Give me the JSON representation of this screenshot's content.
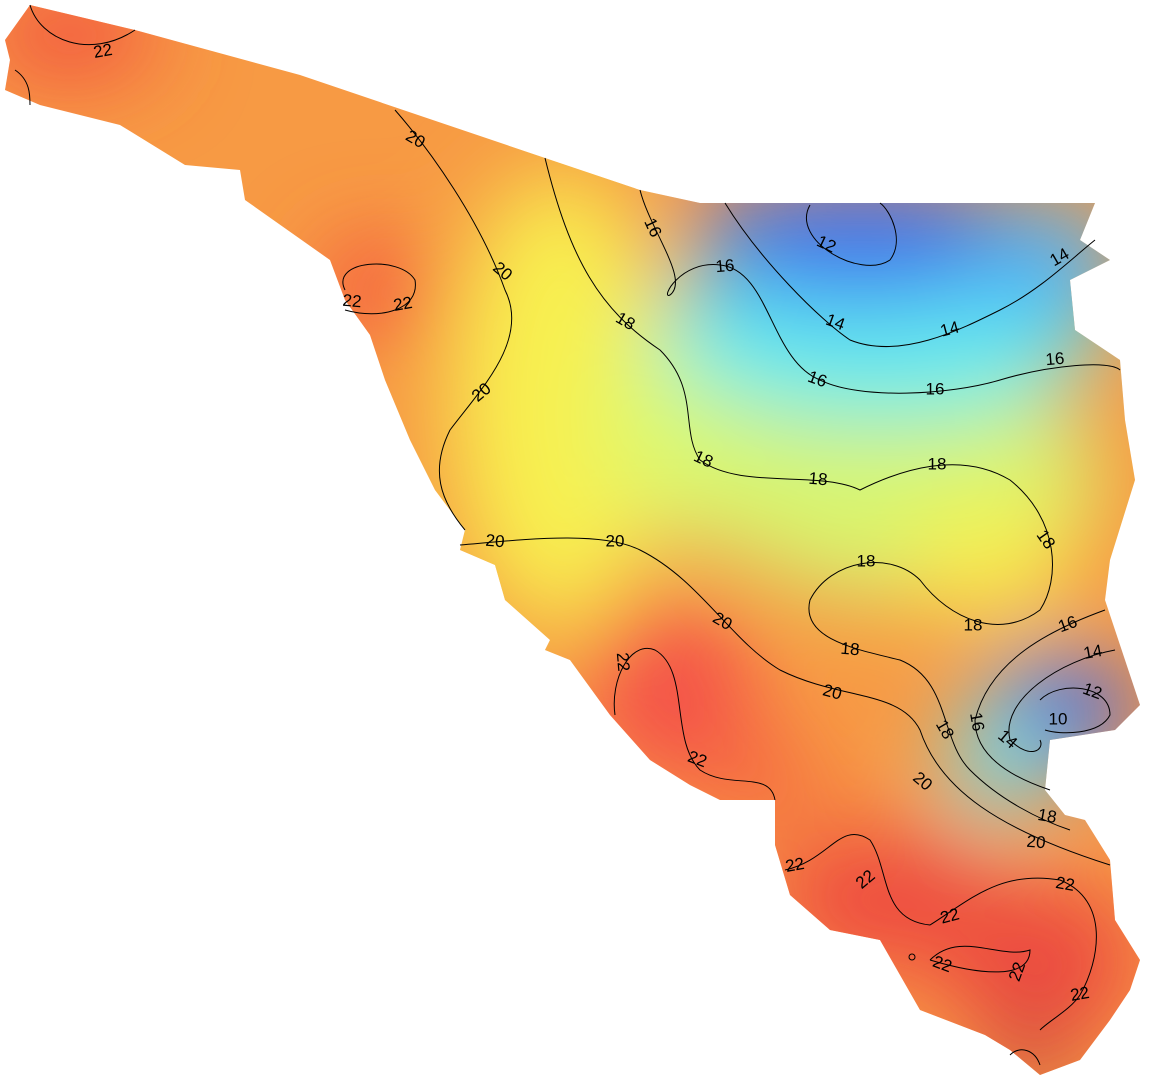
{
  "map": {
    "contour_labels": [
      22,
      20,
      16,
      12,
      16,
      14,
      20,
      22,
      22,
      18,
      14,
      14,
      16,
      16,
      16,
      20,
      18,
      18,
      18,
      18,
      20,
      20,
      18,
      18,
      20,
      16,
      18,
      14,
      22,
      12,
      20,
      10,
      16,
      18,
      14,
      22,
      20,
      18,
      20,
      22,
      22,
      22,
      22,
      22,
      22,
      22
    ]
  }
}
